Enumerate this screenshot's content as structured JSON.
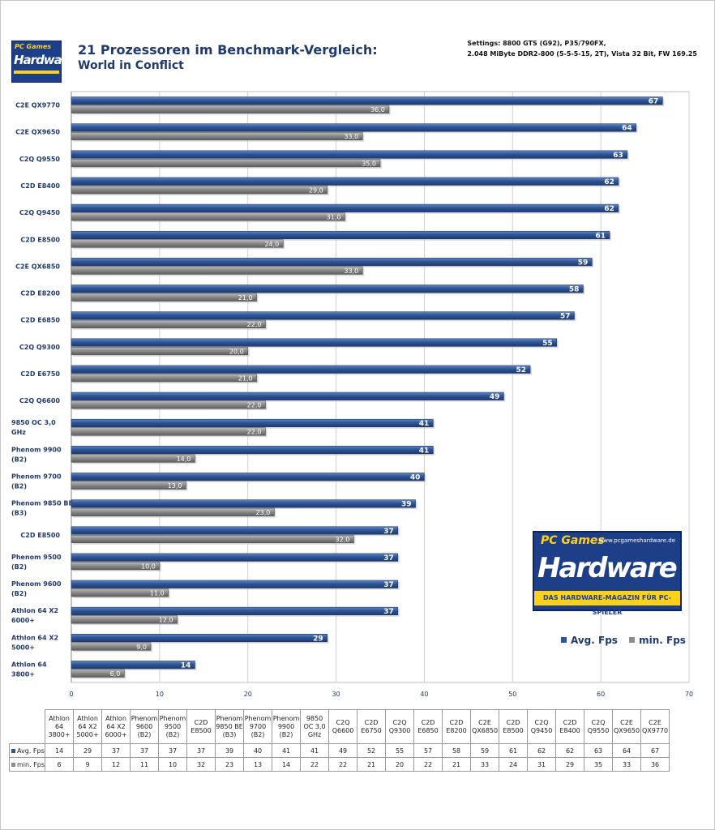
{
  "title": "21 Prozessoren im Benchmark-Vergleich:",
  "subtitle": "World in Conflict",
  "settings": [
    "Settings: 8800 GTS (G92), P35/790FX,",
    "2.048 MiByte DDR2-800 (5-5-5-15, 2T), Vista 32 Bit, FW 169.25"
  ],
  "logo_small": {
    "top": "PC Games",
    "main": "Hardware"
  },
  "logo_big": {
    "top": "PC Games",
    "url": "www.pcgameshardware.de",
    "main": "Hardware",
    "slogan": "DAS HARDWARE-MAGAZIN FÜR PC-SPIELER"
  },
  "colors": {
    "avg": "#2f5597",
    "min": "#8c8c8c"
  },
  "chart_data": {
    "type": "bar",
    "orientation": "horizontal",
    "categories": [
      "C2E QX9770",
      "C2E QX9650",
      "C2Q Q9550",
      "C2D E8400",
      "C2Q Q9450",
      "C2D E8500",
      "C2E QX6850",
      "C2D E8200",
      "C2D E6850",
      "C2Q Q9300",
      "C2D E6750",
      "C2Q Q6600",
      "9850  OC 3,0 GHz",
      "Phenom 9900 (B2)",
      "Phenom 9700 (B2)",
      "Phenom 9850 BE (B3)",
      "C2D E8500",
      "Phenom 9500 (B2)",
      "Phenom 9600 (B2)",
      "Athlon 64 X2 6000+",
      "Athlon 64 X2 5000+",
      "Athlon 64 3800+"
    ],
    "series": [
      {
        "name": "Avg. Fps",
        "values": [
          67,
          64,
          63,
          62,
          62,
          61,
          59,
          58,
          57,
          55,
          52,
          49,
          41,
          41,
          40,
          39,
          37,
          37,
          37,
          37,
          29,
          14
        ],
        "labels": [
          "67",
          "64",
          "63",
          "62",
          "62",
          "61",
          "59",
          "58",
          "57",
          "55",
          "52",
          "49",
          "41",
          "41",
          "40",
          "39",
          "37",
          "37",
          "37",
          "37",
          "29",
          "14"
        ]
      },
      {
        "name": "min. Fps",
        "values": [
          36,
          33,
          35,
          29,
          31,
          24,
          33,
          21,
          22,
          20,
          21,
          22,
          22,
          14,
          13,
          23,
          32,
          10,
          11,
          12,
          9,
          6
        ],
        "labels": [
          "36,0",
          "33,0",
          "35,0",
          "29,0",
          "31,0",
          "24,0",
          "33,0",
          "21,0",
          "22,0",
          "20,0",
          "21,0",
          "22,0",
          "22,0",
          "14,0",
          "13,0",
          "23,0",
          "32,0",
          "10,0",
          "11,0",
          "12,0",
          "9,0",
          "6,0"
        ]
      }
    ],
    "xlim": [
      0,
      70
    ],
    "xticks": [
      "0",
      "10",
      "20",
      "30",
      "40",
      "50",
      "60",
      "70"
    ],
    "grid": true,
    "legend": "bottom-right"
  },
  "table": {
    "headers": [
      "Athlon 64 3800+",
      "Athlon 64 X2 5000+",
      "Athlon 64 X2 6000+",
      "Phenom 9600 (B2)",
      "Phenom 9500 (B2)",
      "C2D E8500",
      "Phenom 9850 BE (B3)",
      "Phenom 9700 (B2)",
      "Phenom 9900 (B2)",
      "9850 OC 3,0 GHz",
      "C2Q Q6600",
      "C2D E6750",
      "C2Q Q9300",
      "C2D E6850",
      "C2D E8200",
      "C2E QX6850",
      "C2D E8500",
      "C2Q Q9450",
      "C2D E8400",
      "C2Q Q9550",
      "C2E QX9650",
      "C2E QX9770"
    ],
    "rows": [
      {
        "label": "Avg. Fps",
        "values": [
          "14",
          "29",
          "37",
          "37",
          "37",
          "37",
          "39",
          "40",
          "41",
          "41",
          "49",
          "52",
          "55",
          "57",
          "58",
          "59",
          "61",
          "62",
          "62",
          "63",
          "64",
          "67"
        ]
      },
      {
        "label": "min. Fps",
        "values": [
          "6",
          "9",
          "12",
          "11",
          "10",
          "32",
          "23",
          "13",
          "14",
          "22",
          "22",
          "21",
          "20",
          "22",
          "21",
          "33",
          "24",
          "31",
          "29",
          "35",
          "33",
          "36"
        ]
      }
    ]
  }
}
